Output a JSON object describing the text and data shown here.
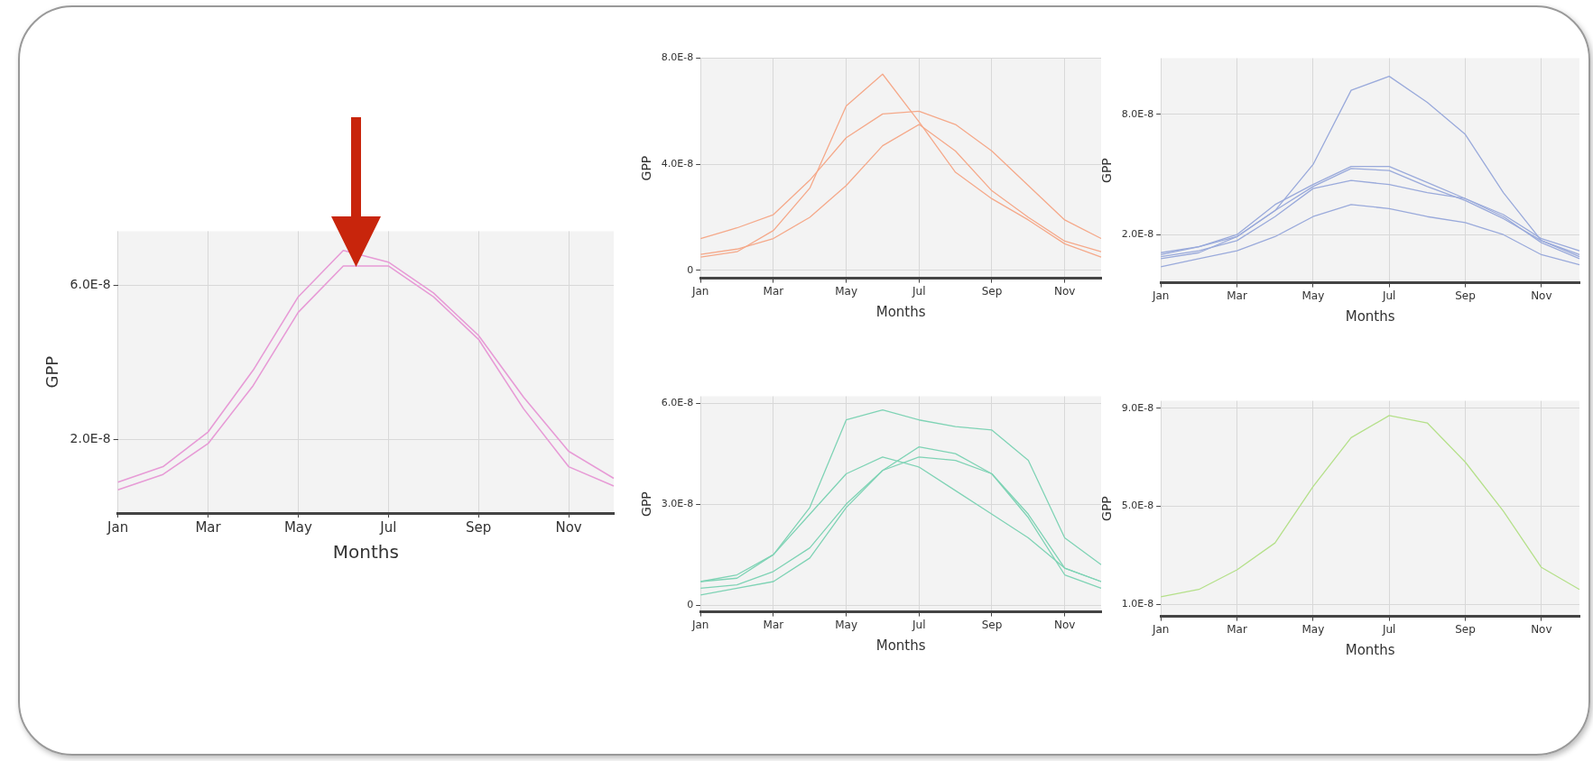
{
  "chart_data": [
    {
      "type": "line",
      "xlabel": "Months",
      "ylabel": "GPP",
      "categories": [
        "Jan",
        null,
        "Mar",
        null,
        "May",
        null,
        "Jul",
        null,
        "Sep",
        null,
        "Nov",
        null
      ],
      "ylim": [
        1e-09,
        7.4e-08
      ],
      "yticks": [
        {
          "value": 2e-08,
          "label": "2.0E-8"
        },
        {
          "value": 6e-08,
          "label": "6.0E-8"
        }
      ],
      "grid": true,
      "marker": "none",
      "series": [
        {
          "color": "#e79bd6",
          "values": [
            9e-09,
            1.3e-08,
            2.2e-08,
            3.8e-08,
            5.7e-08,
            6.9e-08,
            6.6e-08,
            5.8e-08,
            4.7e-08,
            3.1e-08,
            1.7e-08,
            1e-08
          ]
        },
        {
          "color": "#e79bd6",
          "values": [
            7e-09,
            1.1e-08,
            1.9e-08,
            3.4e-08,
            5.3e-08,
            6.5e-08,
            6.5e-08,
            5.7e-08,
            4.6e-08,
            2.8e-08,
            1.3e-08,
            8e-09
          ]
        }
      ]
    },
    {
      "type": "line",
      "xlabel": "Months",
      "ylabel": "GPP",
      "categories": [
        "Jan",
        null,
        "Mar",
        null,
        "May",
        null,
        "Jul",
        null,
        "Sep",
        null,
        "Nov",
        null
      ],
      "ylim": [
        -3e-09,
        8e-08
      ],
      "yticks": [
        0,
        {
          "value": 4e-08,
          "label": "4.0E-8"
        },
        {
          "value": 8e-08,
          "label": "8.0E-8"
        }
      ],
      "grid": true,
      "marker": "none",
      "series": [
        {
          "color": "#f5a98a",
          "values": [
            5e-09,
            7e-09,
            1.5e-08,
            3.1e-08,
            6.2e-08,
            7.4e-08,
            5.6e-08,
            3.7e-08,
            2.7e-08,
            1.9e-08,
            1e-08,
            5e-09
          ]
        },
        {
          "color": "#f5a98a",
          "values": [
            1.2e-08,
            1.6e-08,
            2.1e-08,
            3.4e-08,
            5e-08,
            5.9e-08,
            6e-08,
            5.5e-08,
            4.5e-08,
            3.2e-08,
            1.9e-08,
            1.2e-08
          ]
        },
        {
          "color": "#f5a98a",
          "values": [
            6e-09,
            8e-09,
            1.2e-08,
            2e-08,
            3.2e-08,
            4.7e-08,
            5.5e-08,
            4.5e-08,
            3e-08,
            2e-08,
            1.1e-08,
            7e-09
          ]
        }
      ]
    },
    {
      "type": "line",
      "xlabel": "Months",
      "ylabel": "GPP",
      "categories": [
        "Jan",
        null,
        "Mar",
        null,
        "May",
        null,
        "Jul",
        null,
        "Sep",
        null,
        "Nov",
        null
      ],
      "ylim": [
        -4e-09,
        1.08e-07
      ],
      "yticks": [
        {
          "value": 2e-08,
          "label": "2.0E-8"
        },
        {
          "value": 8e-08,
          "label": "8.0E-8"
        }
      ],
      "grid": true,
      "marker": "none",
      "series": [
        {
          "color": "#9aaadb",
          "values": [
            1e-08,
            1.4e-08,
            1.9e-08,
            3.2e-08,
            5.5e-08,
            9.2e-08,
            9.9e-08,
            8.6e-08,
            7e-08,
            4.1e-08,
            1.7e-08,
            9e-09
          ]
        },
        {
          "color": "#9aaadb",
          "values": [
            1.1e-08,
            1.4e-08,
            2e-08,
            3.5e-08,
            4.5e-08,
            5.4e-08,
            5.4e-08,
            4.6e-08,
            3.8e-08,
            3e-08,
            1.8e-08,
            1.2e-08
          ]
        },
        {
          "color": "#9aaadb",
          "values": [
            8e-09,
            1.1e-08,
            1.9e-08,
            3.2e-08,
            4.4e-08,
            5.3e-08,
            5.2e-08,
            4.4e-08,
            3.7e-08,
            2.8e-08,
            1.7e-08,
            1e-08
          ]
        },
        {
          "color": "#9aaadb",
          "values": [
            9e-09,
            1.2e-08,
            1.7e-08,
            2.9e-08,
            4.3e-08,
            4.7e-08,
            4.5e-08,
            4.1e-08,
            3.8e-08,
            2.9e-08,
            1.6e-08,
            8e-09
          ]
        },
        {
          "color": "#9aaadb",
          "values": [
            4e-09,
            8e-09,
            1.2e-08,
            1.9e-08,
            2.9e-08,
            3.5e-08,
            3.3e-08,
            2.9e-08,
            2.6e-08,
            2e-08,
            1e-08,
            5e-09
          ]
        }
      ]
    },
    {
      "type": "line",
      "xlabel": "Months",
      "ylabel": "GPP",
      "categories": [
        "Jan",
        null,
        "Mar",
        null,
        "May",
        null,
        "Jul",
        null,
        "Sep",
        null,
        "Nov",
        null
      ],
      "ylim": [
        -2e-09,
        6.2e-08
      ],
      "yticks": [
        0,
        {
          "value": 3e-08,
          "label": "3.0E-8"
        },
        {
          "value": 6e-08,
          "label": "6.0E-8"
        }
      ],
      "grid": true,
      "marker": "none",
      "series": [
        {
          "color": "#7fd3b5",
          "values": [
            7e-09,
            9e-09,
            1.5e-08,
            2.9e-08,
            5.5e-08,
            5.8e-08,
            5.5e-08,
            5.3e-08,
            5.2e-08,
            4.3e-08,
            2e-08,
            1.2e-08
          ]
        },
        {
          "color": "#7fd3b5",
          "values": [
            7e-09,
            8e-09,
            1.5e-08,
            2.7e-08,
            3.9e-08,
            4.4e-08,
            4.1e-08,
            3.4e-08,
            2.7e-08,
            2e-08,
            1.1e-08,
            7e-09
          ]
        },
        {
          "color": "#7fd3b5",
          "values": [
            5e-09,
            6e-09,
            1e-08,
            1.7e-08,
            3e-08,
            4e-08,
            4.7e-08,
            4.5e-08,
            3.9e-08,
            2.7e-08,
            1.1e-08,
            7e-09
          ]
        },
        {
          "color": "#7fd3b5",
          "values": [
            3e-09,
            5e-09,
            7e-09,
            1.4e-08,
            2.9e-08,
            4e-08,
            4.4e-08,
            4.3e-08,
            3.9e-08,
            2.6e-08,
            9e-09,
            5e-09
          ]
        }
      ]
    },
    {
      "type": "line",
      "xlabel": "Months",
      "ylabel": "GPP",
      "categories": [
        "Jan",
        null,
        "Mar",
        null,
        "May",
        null,
        "Jul",
        null,
        "Sep",
        null,
        "Nov",
        null
      ],
      "ylim": [
        5e-09,
        9.3e-08
      ],
      "yticks": [
        {
          "value": 1e-08,
          "label": "1.0E-8"
        },
        {
          "value": 5e-08,
          "label": "5.0E-8"
        },
        {
          "value": 9e-08,
          "label": "9.0E-8"
        }
      ],
      "grid": true,
      "marker": "none",
      "series": [
        {
          "color": "#b5e08a",
          "values": [
            1.3e-08,
            1.6e-08,
            2.4e-08,
            3.5e-08,
            5.8e-08,
            7.8e-08,
            8.7e-08,
            8.4e-08,
            6.8e-08,
            4.8e-08,
            2.5e-08,
            1.6e-08
          ]
        }
      ]
    }
  ]
}
